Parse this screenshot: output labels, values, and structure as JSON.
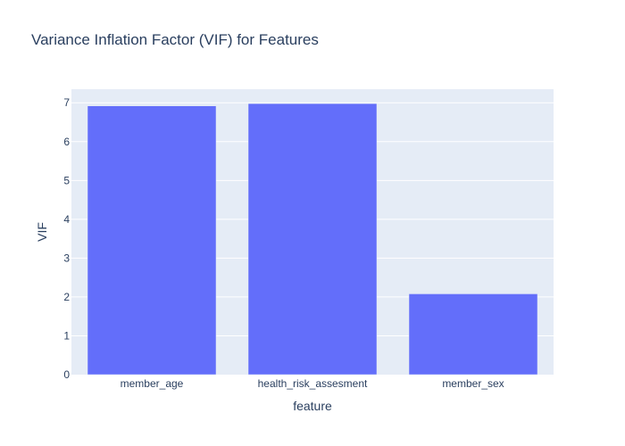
{
  "chart_data": {
    "type": "bar",
    "title": "Variance Inflation Factor (VIF) for Features",
    "xlabel": "feature",
    "ylabel": "VIF",
    "categories": [
      "member_age",
      "health_risk_assesment",
      "member_sex"
    ],
    "values": [
      6.92,
      6.98,
      2.08
    ],
    "ylim": [
      0,
      7.35
    ],
    "yticks": [
      0,
      1,
      2,
      3,
      4,
      5,
      6,
      7
    ],
    "grid": true,
    "bar_color": "#636efa",
    "plot_background": "#e5ecf6",
    "gridline_color": "#ffffff",
    "text_color": "#2a3f5f"
  }
}
